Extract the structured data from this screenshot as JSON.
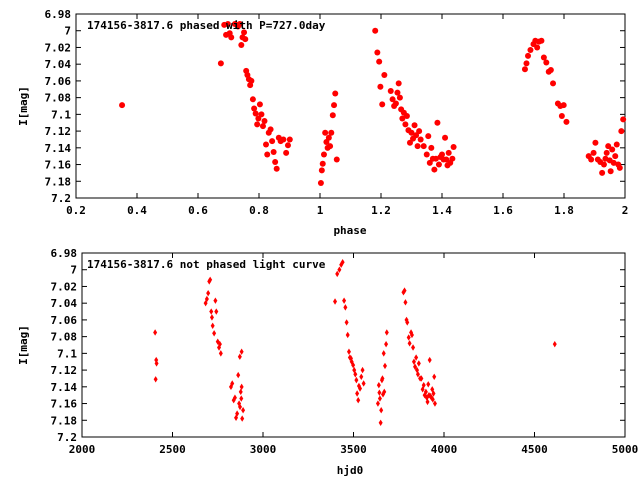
{
  "colors": {
    "marker": "#ff0000",
    "axis": "#000000",
    "background": "#ffffff"
  },
  "chart_data": [
    {
      "type": "scatter",
      "title": "174156-3817.6 phased with P=727.0day",
      "xlabel": "phase",
      "ylabel": "I[mag]",
      "xlim": [
        0.2,
        2.0
      ],
      "ylim": [
        7.2,
        6.98
      ],
      "y_inverted": true,
      "grid": false,
      "marker_style": "filled-circle",
      "xticks": [
        "0.2",
        "0.4",
        "0.6",
        "0.8",
        "1",
        "1.2",
        "1.4",
        "1.6",
        "1.8",
        "2"
      ],
      "yticks": [
        "6.98",
        "7",
        "7.02",
        "7.04",
        "7.06",
        "7.08",
        "7.1",
        "7.12",
        "7.14",
        "7.16",
        "7.18",
        "7.2"
      ],
      "series": [
        {
          "points": [
            [
              0.351,
              7.089
            ],
            [
              0.675,
              7.039
            ],
            [
              0.686,
              6.993
            ],
            [
              0.692,
              7.005
            ],
            [
              0.698,
              6.992
            ],
            [
              0.704,
              7.003
            ],
            [
              0.709,
              7.008
            ],
            [
              0.721,
              6.992
            ],
            [
              0.731,
              6.995
            ],
            [
              0.737,
              6.992
            ],
            [
              0.742,
              7.017
            ],
            [
              0.746,
              7.008
            ],
            [
              0.751,
              7.002
            ],
            [
              0.755,
              7.01
            ],
            [
              0.758,
              7.048
            ],
            [
              0.762,
              7.053
            ],
            [
              0.767,
              7.058
            ],
            [
              0.771,
              7.065
            ],
            [
              0.775,
              7.06
            ],
            [
              0.78,
              7.082
            ],
            [
              0.784,
              7.093
            ],
            [
              0.789,
              7.099
            ],
            [
              0.794,
              7.112
            ],
            [
              0.798,
              7.105
            ],
            [
              0.803,
              7.088
            ],
            [
              0.808,
              7.1
            ],
            [
              0.813,
              7.114
            ],
            [
              0.818,
              7.108
            ],
            [
              0.823,
              7.136
            ],
            [
              0.827,
              7.148
            ],
            [
              0.832,
              7.122
            ],
            [
              0.838,
              7.118
            ],
            [
              0.843,
              7.132
            ],
            [
              0.848,
              7.145
            ],
            [
              0.853,
              7.157
            ],
            [
              0.858,
              7.165
            ],
            [
              0.865,
              7.128
            ],
            [
              0.871,
              7.132
            ],
            [
              0.88,
              7.13
            ],
            [
              0.889,
              7.146
            ],
            [
              0.895,
              7.137
            ],
            [
              0.901,
              7.13
            ],
            [
              1.003,
              7.182
            ],
            [
              1.006,
              7.167
            ],
            [
              1.009,
              7.159
            ],
            [
              1.013,
              7.148
            ],
            [
              1.017,
              7.122
            ],
            [
              1.021,
              7.133
            ],
            [
              1.025,
              7.14
            ],
            [
              1.029,
              7.128
            ],
            [
              1.033,
              7.138
            ],
            [
              1.037,
              7.122
            ],
            [
              1.042,
              7.101
            ],
            [
              1.046,
              7.089
            ],
            [
              1.05,
              7.075
            ],
            [
              1.055,
              7.154
            ],
            [
              1.181,
              7.0
            ],
            [
              1.188,
              7.026
            ],
            [
              1.194,
              7.037
            ],
            [
              1.198,
              7.067
            ],
            [
              1.204,
              7.088
            ],
            [
              1.211,
              7.053
            ],
            [
              1.232,
              7.072
            ],
            [
              1.238,
              7.082
            ],
            [
              1.243,
              7.09
            ],
            [
              1.249,
              7.087
            ],
            [
              1.254,
              7.074
            ],
            [
              1.258,
              7.063
            ],
            [
              1.262,
              7.08
            ],
            [
              1.266,
              7.094
            ],
            [
              1.27,
              7.105
            ],
            [
              1.275,
              7.098
            ],
            [
              1.28,
              7.112
            ],
            [
              1.285,
              7.102
            ],
            [
              1.29,
              7.119
            ],
            [
              1.295,
              7.134
            ],
            [
              1.3,
              7.122
            ],
            [
              1.305,
              7.129
            ],
            [
              1.31,
              7.113
            ],
            [
              1.315,
              7.125
            ],
            [
              1.32,
              7.138
            ],
            [
              1.325,
              7.12
            ],
            [
              1.33,
              7.13
            ],
            [
              1.34,
              7.138
            ],
            [
              1.35,
              7.148
            ],
            [
              1.355,
              7.126
            ],
            [
              1.36,
              7.158
            ],
            [
              1.365,
              7.14
            ],
            [
              1.37,
              7.153
            ],
            [
              1.375,
              7.166
            ],
            [
              1.38,
              7.153
            ],
            [
              1.385,
              7.11
            ],
            [
              1.39,
              7.16
            ],
            [
              1.395,
              7.151
            ],
            [
              1.4,
              7.148
            ],
            [
              1.405,
              7.154
            ],
            [
              1.41,
              7.128
            ],
            [
              1.414,
              7.154
            ],
            [
              1.418,
              7.161
            ],
            [
              1.422,
              7.146
            ],
            [
              1.427,
              7.158
            ],
            [
              1.434,
              7.153
            ],
            [
              1.438,
              7.139
            ],
            [
              1.672,
              7.046
            ],
            [
              1.677,
              7.039
            ],
            [
              1.682,
              7.03
            ],
            [
              1.69,
              7.023
            ],
            [
              1.7,
              7.016
            ],
            [
              1.706,
              7.012
            ],
            [
              1.712,
              7.02
            ],
            [
              1.718,
              7.013
            ],
            [
              1.726,
              7.012
            ],
            [
              1.734,
              7.032
            ],
            [
              1.742,
              7.038
            ],
            [
              1.75,
              7.049
            ],
            [
              1.757,
              7.047
            ],
            [
              1.764,
              7.063
            ],
            [
              1.78,
              7.087
            ],
            [
              1.788,
              7.09
            ],
            [
              1.793,
              7.102
            ],
            [
              1.799,
              7.089
            ],
            [
              1.808,
              7.109
            ],
            [
              1.881,
              7.15
            ],
            [
              1.889,
              7.154
            ],
            [
              1.897,
              7.146
            ],
            [
              1.903,
              7.134
            ],
            [
              1.911,
              7.154
            ],
            [
              1.919,
              7.157
            ],
            [
              1.925,
              7.17
            ],
            [
              1.931,
              7.16
            ],
            [
              1.936,
              7.153
            ],
            [
              1.94,
              7.146
            ],
            [
              1.945,
              7.138
            ],
            [
              1.95,
              7.155
            ],
            [
              1.953,
              7.168
            ],
            [
              1.958,
              7.142
            ],
            [
              1.963,
              7.158
            ],
            [
              1.968,
              7.15
            ],
            [
              1.973,
              7.136
            ],
            [
              1.978,
              7.16
            ],
            [
              1.983,
              7.164
            ],
            [
              1.988,
              7.12
            ],
            [
              1.994,
              7.106
            ]
          ]
        }
      ]
    },
    {
      "type": "scatter",
      "title": "174156-3817.6 not phased light curve",
      "xlabel": "hjd0",
      "ylabel": "I[mag]",
      "xlim": [
        2000,
        5000
      ],
      "ylim": [
        7.2,
        6.98
      ],
      "y_inverted": true,
      "grid": false,
      "marker_style": "filled-diamond",
      "xticks": [
        "2000",
        "2500",
        "3000",
        "3500",
        "4000",
        "4500",
        "5000"
      ],
      "yticks": [
        "6.98",
        "7",
        "7.02",
        "7.04",
        "7.06",
        "7.08",
        "7.1",
        "7.12",
        "7.14",
        "7.16",
        "7.18",
        "7.2"
      ],
      "series": [
        {
          "points": [
            [
              2404,
              7.075
            ],
            [
              2410,
              7.108
            ],
            [
              2407,
              7.131
            ],
            [
              2412,
              7.112
            ],
            [
              2683,
              7.04
            ],
            [
              2690,
              7.035
            ],
            [
              2697,
              7.028
            ],
            [
              2703,
              7.014
            ],
            [
              2708,
              7.012
            ],
            [
              2714,
              7.05
            ],
            [
              2718,
              7.057
            ],
            [
              2722,
              7.067
            ],
            [
              2730,
              7.076
            ],
            [
              2737,
              7.037
            ],
            [
              2742,
              7.05
            ],
            [
              2750,
              7.086
            ],
            [
              2757,
              7.093
            ],
            [
              2762,
              7.089
            ],
            [
              2767,
              7.1
            ],
            [
              2823,
              7.14
            ],
            [
              2830,
              7.136
            ],
            [
              2838,
              7.156
            ],
            [
              2845,
              7.153
            ],
            [
              2851,
              7.177
            ],
            [
              2857,
              7.172
            ],
            [
              2863,
              7.126
            ],
            [
              2868,
              7.16
            ],
            [
              2873,
              7.164
            ],
            [
              2880,
              7.154
            ],
            [
              2877,
              7.146
            ],
            [
              2882,
              7.14
            ],
            [
              2885,
              7.178
            ],
            [
              2890,
              7.168
            ],
            [
              2872,
              7.104
            ],
            [
              2882,
              7.098
            ],
            [
              3398,
              7.038
            ],
            [
              3410,
              7.005
            ],
            [
              3422,
              7.0
            ],
            [
              3432,
              6.994
            ],
            [
              3440,
              6.991
            ],
            [
              3448,
              7.037
            ],
            [
              3455,
              7.045
            ],
            [
              3462,
              7.063
            ],
            [
              3468,
              7.078
            ],
            [
              3475,
              7.098
            ],
            [
              3480,
              7.105
            ],
            [
              3486,
              7.106
            ],
            [
              3490,
              7.11
            ],
            [
              3498,
              7.114
            ],
            [
              3504,
              7.12
            ],
            [
              3510,
              7.125
            ],
            [
              3516,
              7.132
            ],
            [
              3520,
              7.148
            ],
            [
              3526,
              7.156
            ],
            [
              3530,
              7.139
            ],
            [
              3536,
              7.142
            ],
            [
              3543,
              7.128
            ],
            [
              3550,
              7.12
            ],
            [
              3556,
              7.136
            ],
            [
              3635,
              7.16
            ],
            [
              3640,
              7.138
            ],
            [
              3643,
              7.147
            ],
            [
              3646,
              7.154
            ],
            [
              3650,
              7.183
            ],
            [
              3653,
              7.168
            ],
            [
              3657,
              7.132
            ],
            [
              3660,
              7.13
            ],
            [
              3663,
              7.149
            ],
            [
              3667,
              7.1
            ],
            [
              3670,
              7.146
            ],
            [
              3674,
              7.115
            ],
            [
              3680,
              7.089
            ],
            [
              3684,
              7.075
            ],
            [
              3776,
              7.027
            ],
            [
              3782,
              7.025
            ],
            [
              3787,
              7.039
            ],
            [
              3793,
              7.06
            ],
            [
              3797,
              7.063
            ],
            [
              3805,
              7.081
            ],
            [
              3810,
              7.088
            ],
            [
              3818,
              7.075
            ],
            [
              3823,
              7.078
            ],
            [
              3829,
              7.093
            ],
            [
              3834,
              7.11
            ],
            [
              3840,
              7.116
            ],
            [
              3846,
              7.105
            ],
            [
              3851,
              7.12
            ],
            [
              3856,
              7.125
            ],
            [
              3861,
              7.112
            ],
            [
              3868,
              7.13
            ],
            [
              3875,
              7.13
            ],
            [
              3882,
              7.143
            ],
            [
              3888,
              7.138
            ],
            [
              3893,
              7.15
            ],
            [
              3900,
              7.146
            ],
            [
              3905,
              7.153
            ],
            [
              3909,
              7.158
            ],
            [
              3913,
              7.137
            ],
            [
              3917,
              7.15
            ],
            [
              3921,
              7.108
            ],
            [
              3925,
              7.151
            ],
            [
              3931,
              7.153
            ],
            [
              3935,
              7.143
            ],
            [
              3938,
              7.155
            ],
            [
              3942,
              7.148
            ],
            [
              3946,
              7.128
            ],
            [
              3950,
              7.16
            ],
            [
              4612,
              7.089
            ]
          ]
        }
      ]
    }
  ]
}
